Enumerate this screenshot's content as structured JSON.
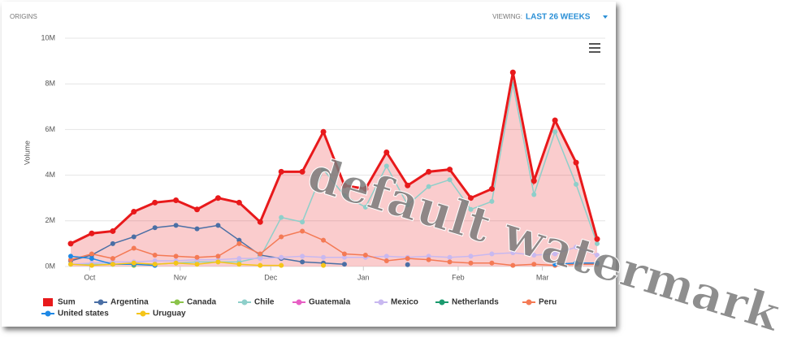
{
  "header": {
    "title": "ORIGINS",
    "viewing_label": "VIEWING:",
    "viewing_value": "LAST 26 WEEKS"
  },
  "watermark": "default watermark",
  "chart_data": {
    "type": "line",
    "y_label": "Volume",
    "categories": [
      null,
      null,
      null,
      null,
      null,
      null,
      null,
      null,
      null,
      null,
      null,
      null,
      null,
      null,
      null,
      null,
      null,
      null,
      null,
      null,
      null,
      null,
      null,
      null,
      null,
      null
    ],
    "xticks": [
      {
        "value": 0.9,
        "label": "Oct"
      },
      {
        "value": 5.2,
        "label": "Nov"
      },
      {
        "value": 9.5,
        "label": "Dec"
      },
      {
        "value": 13.9,
        "label": "Jan"
      },
      {
        "value": 18.4,
        "label": "Feb"
      },
      {
        "value": 22.4,
        "label": "Mar"
      }
    ],
    "ylim": [
      0,
      10
    ],
    "yticks": [
      {
        "value": 0,
        "label": "0M"
      },
      {
        "value": 2,
        "label": "2M"
      },
      {
        "value": 4,
        "label": "4M"
      },
      {
        "value": 6,
        "label": "6M"
      },
      {
        "value": 8,
        "label": "8M"
      },
      {
        "value": 10,
        "label": "10M"
      }
    ],
    "grid": true,
    "series": [
      {
        "name": "Sum",
        "color": "#e8191b",
        "fill": true,
        "values": [
          1.0,
          1.45,
          1.55,
          2.4,
          2.8,
          2.9,
          2.5,
          3.0,
          2.8,
          1.95,
          4.15,
          4.15,
          5.9,
          3.55,
          3.4,
          5.0,
          3.55,
          4.15,
          4.25,
          3.0,
          3.4,
          8.5,
          3.75,
          6.4,
          4.55,
          1.2
        ]
      },
      {
        "name": "Argentina",
        "color": "#4a6fa5",
        "values": [
          0.25,
          0.5,
          1.0,
          1.3,
          1.7,
          1.8,
          1.65,
          1.8,
          1.15,
          0.5,
          0.35,
          0.2,
          0.15,
          0.1,
          null,
          null,
          0.08,
          null,
          null,
          null,
          null,
          null,
          null,
          null,
          null,
          null
        ]
      },
      {
        "name": "Canada",
        "color": "#8bc34a",
        "values": [
          null,
          null,
          null,
          0.05,
          null,
          null,
          null,
          null,
          null,
          null,
          null,
          null,
          null,
          null,
          null,
          null,
          null,
          null,
          null,
          null,
          null,
          null,
          null,
          null,
          null,
          null
        ]
      },
      {
        "name": "Chile",
        "color": "#8ecfca",
        "values": [
          0.1,
          0.1,
          0.1,
          0.1,
          0.1,
          0.15,
          0.2,
          0.2,
          0.2,
          0.4,
          2.15,
          1.95,
          4.25,
          3.1,
          2.6,
          4.4,
          2.7,
          3.5,
          3.8,
          2.5,
          2.85,
          8.0,
          3.15,
          5.9,
          3.6,
          1.0
        ]
      },
      {
        "name": "Guatemala",
        "color": "#e75fc4",
        "values": [
          null,
          null,
          null,
          null,
          null,
          null,
          null,
          null,
          null,
          null,
          null,
          null,
          null,
          null,
          null,
          null,
          null,
          null,
          null,
          null,
          null,
          null,
          null,
          null,
          null,
          null
        ]
      },
      {
        "name": "Mexico",
        "color": "#c8b8f0",
        "values": [
          0.1,
          0.15,
          0.2,
          0.2,
          0.25,
          0.25,
          0.3,
          0.3,
          0.35,
          0.35,
          0.4,
          0.45,
          0.4,
          0.4,
          0.4,
          0.45,
          0.4,
          0.45,
          0.4,
          0.45,
          0.55,
          0.6,
          0.5,
          0.55,
          0.85,
          0.5
        ]
      },
      {
        "name": "Netherlands",
        "color": "#1a9a6e",
        "values": [
          null,
          null,
          null,
          null,
          null,
          null,
          null,
          null,
          null,
          null,
          null,
          null,
          null,
          null,
          null,
          null,
          null,
          null,
          null,
          null,
          null,
          null,
          null,
          null,
          null,
          null
        ]
      },
      {
        "name": "Peru",
        "color": "#f47a55",
        "values": [
          0.3,
          0.55,
          0.35,
          0.8,
          0.5,
          0.45,
          0.4,
          0.45,
          1.0,
          0.55,
          1.3,
          1.55,
          1.15,
          0.55,
          0.5,
          0.25,
          0.35,
          0.3,
          0.2,
          0.15,
          0.15,
          0.05,
          0.1,
          0.05,
          0.1,
          0.1
        ]
      },
      {
        "name": "United states",
        "color": "#1e88e5",
        "values": [
          0.45,
          0.35,
          0.1,
          0.1,
          0.05,
          null,
          null,
          null,
          null,
          null,
          null,
          null,
          null,
          null,
          null,
          null,
          null,
          null,
          null,
          null,
          null,
          null,
          null,
          0.1,
          0.15,
          0.15
        ]
      },
      {
        "name": "Uruguay",
        "color": "#f5c518",
        "values": [
          0.1,
          0.05,
          0.1,
          0.15,
          0.1,
          0.15,
          0.1,
          0.2,
          0.1,
          0.05,
          0.05,
          null,
          0.05,
          null,
          null,
          null,
          null,
          null,
          null,
          null,
          null,
          null,
          null,
          null,
          null,
          null
        ]
      }
    ]
  }
}
